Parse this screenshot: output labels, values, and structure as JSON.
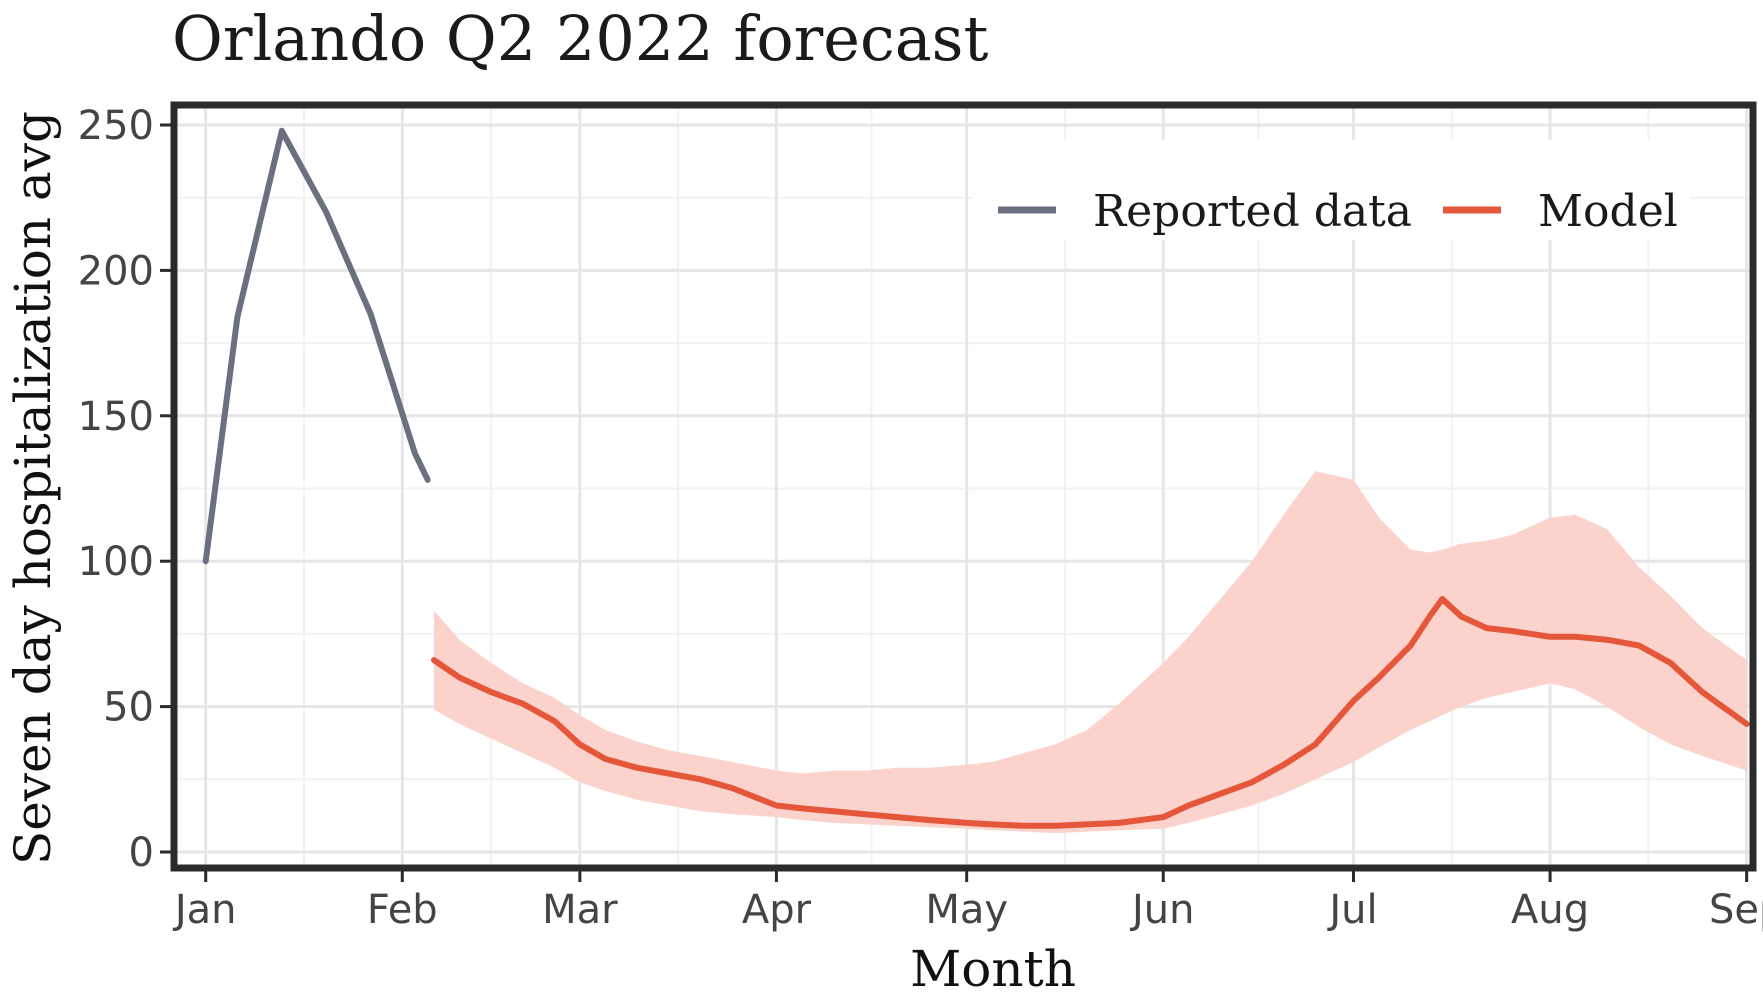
{
  "chart_data": {
    "type": "line",
    "title": "Orlando Q2 2022 forecast",
    "xlabel": "Month",
    "ylabel": "Seven day hospitalization avg",
    "ylim": [
      0,
      250
    ],
    "xlim_day": [
      -5,
      244
    ],
    "x_ticks": [
      {
        "label": "Jan",
        "day": 0
      },
      {
        "label": "Feb",
        "day": 31
      },
      {
        "label": "Mar",
        "day": 59
      },
      {
        "label": "Apr",
        "day": 90
      },
      {
        "label": "May",
        "day": 120
      },
      {
        "label": "Jun",
        "day": 151
      },
      {
        "label": "Jul",
        "day": 181
      },
      {
        "label": "Aug",
        "day": 212
      },
      {
        "label": "Sep",
        "day": 243
      }
    ],
    "y_ticks": [
      0,
      50,
      100,
      150,
      200,
      250
    ],
    "grid": true,
    "legend": {
      "placement": "top-right"
    },
    "series": [
      {
        "name": "Reported data",
        "color": "#6b7080",
        "x": [
          "2022-01-01",
          "2022-01-06",
          "2022-01-13",
          "2022-01-20",
          "2022-01-27",
          "2022-02-03",
          "2022-02-05"
        ],
        "y": [
          100,
          184,
          248,
          220,
          185,
          137,
          128
        ]
      },
      {
        "name": "Model",
        "color": "#e5573a",
        "band_color": "#fbd3cc",
        "x": [
          "2022-02-06",
          "2022-02-10",
          "2022-02-15",
          "2022-02-20",
          "2022-02-25",
          "2022-03-01",
          "2022-03-05",
          "2022-03-10",
          "2022-03-15",
          "2022-03-20",
          "2022-03-25",
          "2022-04-01",
          "2022-04-05",
          "2022-04-10",
          "2022-04-15",
          "2022-04-20",
          "2022-04-25",
          "2022-05-01",
          "2022-05-05",
          "2022-05-10",
          "2022-05-15",
          "2022-05-20",
          "2022-05-25",
          "2022-06-01",
          "2022-06-05",
          "2022-06-10",
          "2022-06-15",
          "2022-06-20",
          "2022-06-25",
          "2022-07-01",
          "2022-07-05",
          "2022-07-10",
          "2022-07-13",
          "2022-07-15",
          "2022-07-18",
          "2022-07-22",
          "2022-07-26",
          "2022-08-01",
          "2022-08-05",
          "2022-08-10",
          "2022-08-15",
          "2022-08-20",
          "2022-08-25",
          "2022-09-01"
        ],
        "y": [
          66,
          60,
          55,
          51,
          45,
          37,
          32,
          29,
          27,
          25,
          22,
          16,
          15,
          14,
          13,
          12,
          11,
          10,
          9.5,
          9,
          9,
          9.5,
          10,
          12,
          16,
          20,
          24,
          30,
          37,
          52,
          60,
          71,
          81,
          87,
          81,
          77,
          76,
          74,
          74,
          73,
          71,
          65,
          55,
          44
        ],
        "lower": [
          49,
          44,
          39,
          34,
          29,
          24,
          21,
          18,
          16,
          14,
          13,
          12,
          11,
          10,
          9.5,
          9,
          8.5,
          8,
          7.5,
          7,
          6.5,
          7,
          7.5,
          8,
          10,
          13,
          16,
          20,
          25,
          31,
          36,
          42,
          45,
          47,
          50,
          53,
          55,
          58,
          56,
          50,
          43,
          37,
          33,
          28
        ],
        "upper": [
          83,
          73,
          65,
          58,
          53,
          47,
          42,
          38,
          35,
          33,
          31,
          28,
          27,
          28,
          28,
          29,
          29,
          30,
          31,
          34,
          37,
          42,
          51,
          65,
          74,
          87,
          100,
          116,
          131,
          128,
          115,
          104,
          103,
          104,
          106,
          107,
          109,
          115,
          116,
          111,
          98,
          88,
          77,
          66
        ]
      }
    ]
  }
}
